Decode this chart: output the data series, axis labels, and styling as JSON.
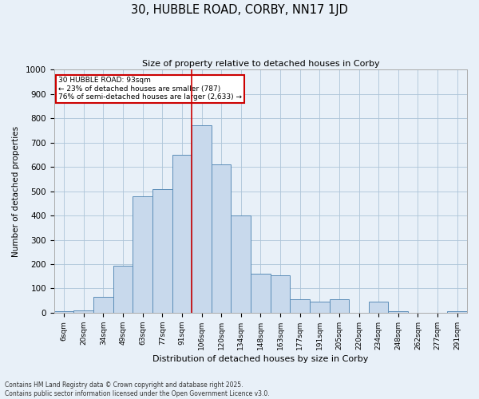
{
  "title": "30, HUBBLE ROAD, CORBY, NN17 1JD",
  "subtitle": "Size of property relative to detached houses in Corby",
  "xlabel": "Distribution of detached houses by size in Corby",
  "ylabel": "Number of detached properties",
  "bin_labels": [
    "6sqm",
    "20sqm",
    "34sqm",
    "49sqm",
    "63sqm",
    "77sqm",
    "91sqm",
    "106sqm",
    "120sqm",
    "134sqm",
    "148sqm",
    "163sqm",
    "177sqm",
    "191sqm",
    "205sqm",
    "220sqm",
    "234sqm",
    "248sqm",
    "262sqm",
    "277sqm",
    "291sqm"
  ],
  "bar_values": [
    5,
    10,
    65,
    195,
    480,
    510,
    650,
    770,
    610,
    400,
    160,
    155,
    55,
    45,
    55,
    0,
    45,
    5,
    0,
    0,
    5
  ],
  "bar_color": "#c8d9ec",
  "bar_edge_color": "#5b8db8",
  "red_line_x": 6.5,
  "annotation_line1": "30 HUBBLE ROAD: 93sqm",
  "annotation_line2": "← 23% of detached houses are smaller (787)",
  "annotation_line3": "76% of semi-detached houses are larger (2,633) →",
  "annotation_box_color": "#ffffff",
  "annotation_box_edge": "#cc0000",
  "ylim": [
    0,
    1000
  ],
  "yticks": [
    0,
    100,
    200,
    300,
    400,
    500,
    600,
    700,
    800,
    900,
    1000
  ],
  "grid_color": "#adc4d8",
  "bg_color": "#e8f0f8",
  "footnote1": "Contains HM Land Registry data © Crown copyright and database right 2025.",
  "footnote2": "Contains public sector information licensed under the Open Government Licence v3.0."
}
